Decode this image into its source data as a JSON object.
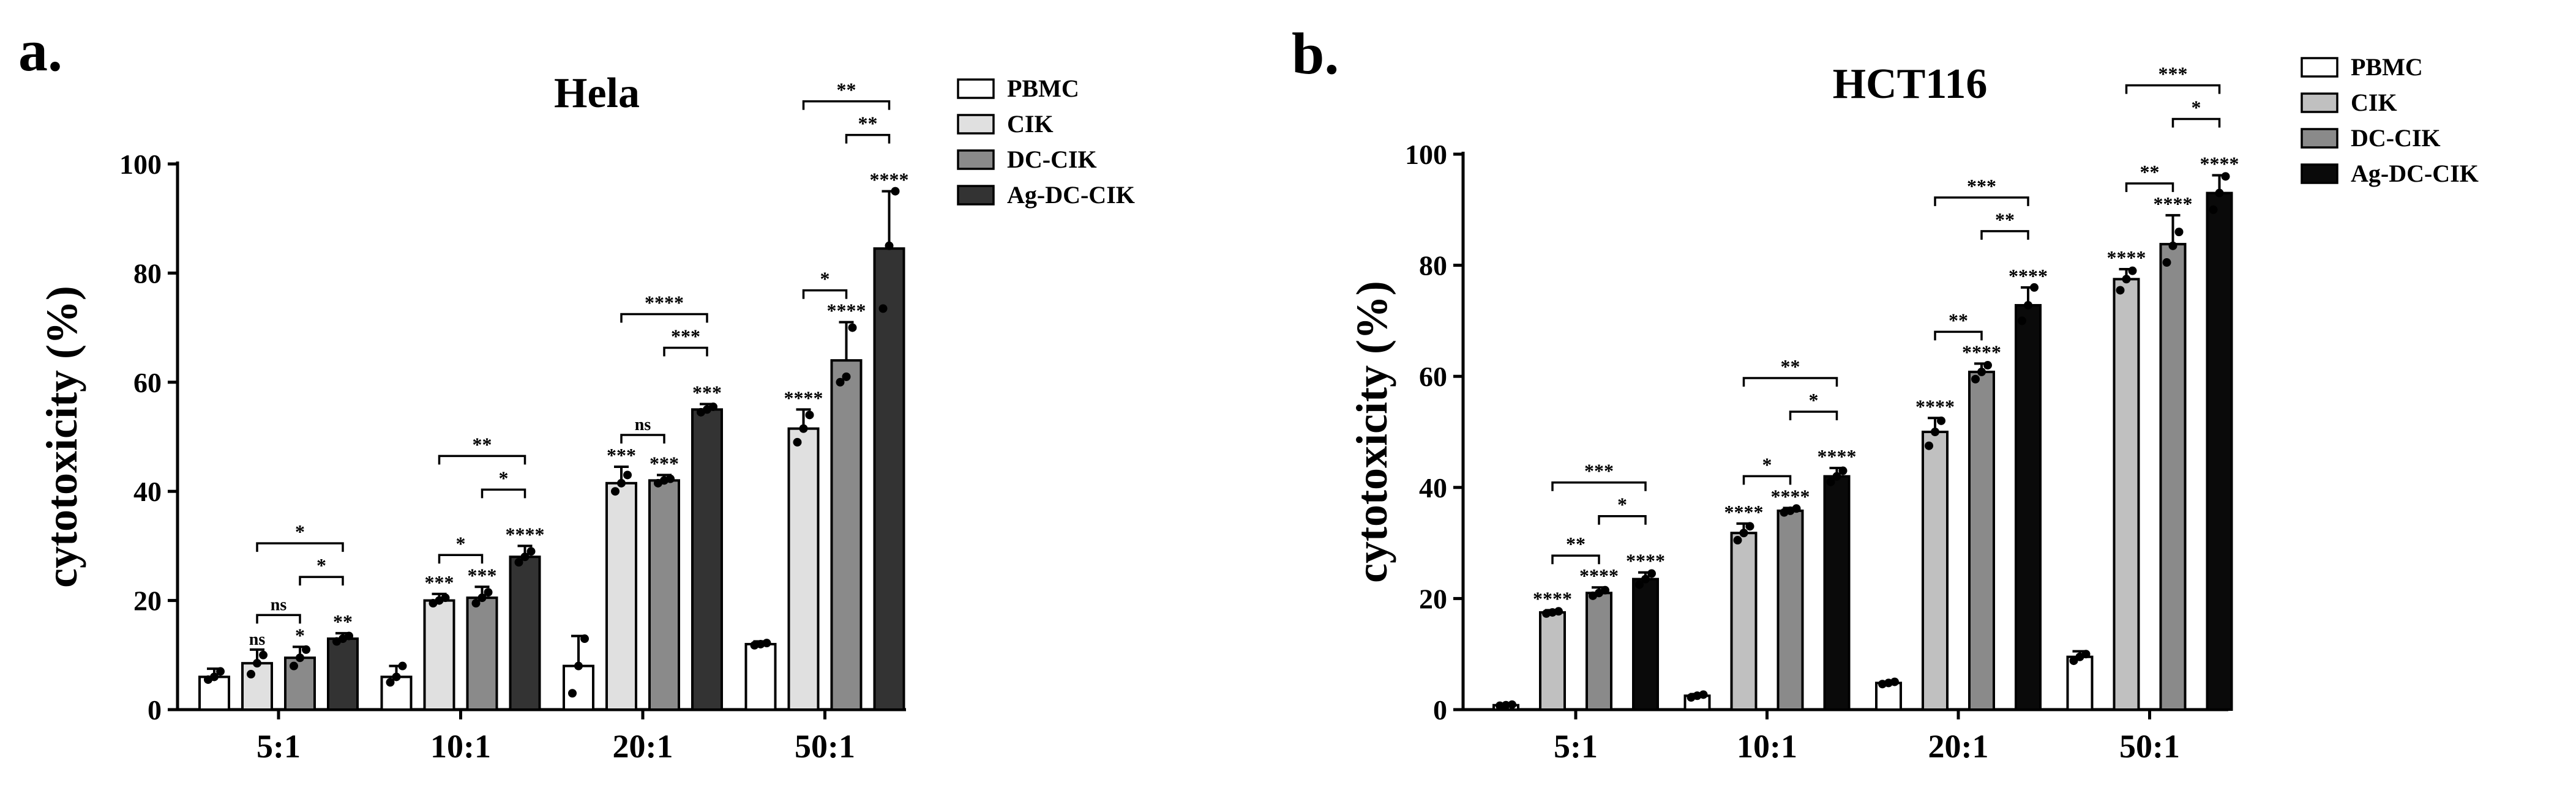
{
  "chart_data": [
    {
      "type": "bar",
      "panel_label": "a.",
      "title": "Hela",
      "xlabel": "",
      "ylabel": "cytotoxicity (%)",
      "ylim": [
        0,
        100
      ],
      "yticks": [
        0,
        20,
        40,
        60,
        80,
        100
      ],
      "categories": [
        "5:1",
        "10:1",
        "20:1",
        "50:1"
      ],
      "legend_position": "top-right",
      "series": [
        {
          "name": "PBMC",
          "color": "#ffffff",
          "values": [
            6,
            6,
            8,
            12
          ],
          "errors": [
            1.5,
            2,
            5.5,
            0.5
          ],
          "points": [
            [
              5.5,
              6,
              7
            ],
            [
              5,
              6,
              8
            ],
            [
              3,
              8,
              13
            ],
            [
              11.8,
              12,
              12.2
            ]
          ],
          "labels": [
            "",
            "",
            "",
            ""
          ]
        },
        {
          "name": "CIK",
          "color": "#e0e0e0",
          "values": [
            8.5,
            20,
            41.5,
            51.5
          ],
          "errors": [
            2.5,
            1.2,
            3,
            3.5
          ],
          "points": [
            [
              6.5,
              8.5,
              10
            ],
            [
              19.5,
              20,
              20.5
            ],
            [
              40,
              41.5,
              43
            ],
            [
              49,
              51.5,
              54
            ]
          ],
          "labels": [
            "ns",
            "***",
            "***",
            "****"
          ]
        },
        {
          "name": "DC-CIK",
          "color": "#8a8a8a",
          "values": [
            9.5,
            20.5,
            42,
            64
          ],
          "errors": [
            2,
            2,
            1,
            7
          ],
          "points": [
            [
              8,
              9.5,
              11
            ],
            [
              19.5,
              20.5,
              21.5
            ],
            [
              41.5,
              42,
              42.3
            ],
            [
              60,
              61,
              70
            ]
          ],
          "labels": [
            "*",
            "***",
            "***",
            "****"
          ]
        },
        {
          "name": "Ag-DC-CIK",
          "color": "#333333",
          "values": [
            13,
            28,
            55,
            84.5
          ],
          "errors": [
            1,
            2,
            1,
            10.5
          ],
          "points": [
            [
              12.5,
              13,
              13.5
            ],
            [
              27,
              28,
              29
            ],
            [
              54.5,
              55,
              55.5
            ],
            [
              73.5,
              85,
              95
            ]
          ],
          "labels": [
            "**",
            "****",
            "***",
            "****"
          ]
        }
      ],
      "comparisons": [
        {
          "category": "5:1",
          "from": "CIK",
          "to": "DC-CIK",
          "label": "ns",
          "level": 1
        },
        {
          "category": "5:1",
          "from": "DC-CIK",
          "to": "Ag-DC-CIK",
          "label": "*",
          "level": 2
        },
        {
          "category": "5:1",
          "from": "CIK",
          "to": "Ag-DC-CIK",
          "label": "*",
          "level": 3
        },
        {
          "category": "10:1",
          "from": "CIK",
          "to": "DC-CIK",
          "label": "*",
          "level": 1
        },
        {
          "category": "10:1",
          "from": "DC-CIK",
          "to": "Ag-DC-CIK",
          "label": "*",
          "level": 2
        },
        {
          "category": "10:1",
          "from": "CIK",
          "to": "Ag-DC-CIK",
          "label": "**",
          "level": 3
        },
        {
          "category": "20:1",
          "from": "CIK",
          "to": "DC-CIK",
          "label": "ns",
          "level": 1
        },
        {
          "category": "20:1",
          "from": "DC-CIK",
          "to": "Ag-DC-CIK",
          "label": "***",
          "level": 2
        },
        {
          "category": "20:1",
          "from": "CIK",
          "to": "Ag-DC-CIK",
          "label": "****",
          "level": 3
        },
        {
          "category": "50:1",
          "from": "CIK",
          "to": "DC-CIK",
          "label": "*",
          "level": 1
        },
        {
          "category": "50:1",
          "from": "DC-CIK",
          "to": "Ag-DC-CIK",
          "label": "**",
          "level": 2
        },
        {
          "category": "50:1",
          "from": "CIK",
          "to": "Ag-DC-CIK",
          "label": "**",
          "level": 3
        }
      ]
    },
    {
      "type": "bar",
      "panel_label": "b.",
      "title": "HCT116",
      "xlabel": "",
      "ylabel": "cytotoxicity (%)",
      "ylim": [
        0,
        100
      ],
      "yticks": [
        0,
        20,
        40,
        60,
        80,
        100
      ],
      "categories": [
        "5:1",
        "10:1",
        "20:1",
        "50:1"
      ],
      "legend_position": "top-right",
      "series": [
        {
          "name": "PBMC",
          "color": "#ffffff",
          "values": [
            0.8,
            2.5,
            4.8,
            9.5
          ],
          "errors": [
            0.2,
            0.3,
            0.2,
            1
          ],
          "points": [
            [
              0.7,
              0.8,
              0.9
            ],
            [
              2.2,
              2.5,
              2.7
            ],
            [
              4.6,
              4.8,
              5
            ],
            [
              8.8,
              9.5,
              10
            ]
          ],
          "labels": [
            "",
            "",
            "",
            ""
          ]
        },
        {
          "name": "CIK",
          "color": "#c0c0c0",
          "values": [
            17.5,
            31.8,
            50,
            77.5
          ],
          "errors": [
            0.4,
            1.7,
            2.5,
            1.8
          ],
          "points": [
            [
              17.3,
              17.5,
              17.7
            ],
            [
              30.5,
              31.8,
              33
            ],
            [
              47.5,
              50,
              52
            ],
            [
              75.5,
              77.5,
              79
            ]
          ],
          "labels": [
            "****",
            "****",
            "****",
            "****"
          ]
        },
        {
          "name": "DC-CIK",
          "color": "#8a8a8a",
          "values": [
            21,
            35.8,
            60.8,
            83.8
          ],
          "errors": [
            1,
            0.5,
            1.5,
            5.2
          ],
          "points": [
            [
              20.5,
              21,
              21.5
            ],
            [
              35.5,
              35.8,
              36.2
            ],
            [
              59.5,
              60.8,
              62
            ],
            [
              80.5,
              83.5,
              86
            ]
          ],
          "labels": [
            "****",
            "****",
            "****",
            "****"
          ]
        },
        {
          "name": "Ag-DC-CIK",
          "color": "#0a0a0a",
          "values": [
            23.5,
            42,
            72.8,
            93
          ],
          "errors": [
            1.2,
            1.5,
            3.2,
            3.2
          ],
          "points": [
            [
              22.5,
              23.5,
              24.5
            ],
            [
              41,
              42,
              43
            ],
            [
              70,
              72.8,
              76
            ],
            [
              90,
              93,
              96
            ]
          ],
          "labels": [
            "****",
            "****",
            "****",
            "****"
          ]
        }
      ],
      "comparisons": [
        {
          "category": "5:1",
          "from": "CIK",
          "to": "DC-CIK",
          "label": "**",
          "level": 1
        },
        {
          "category": "5:1",
          "from": "DC-CIK",
          "to": "Ag-DC-CIK",
          "label": "*",
          "level": 2
        },
        {
          "category": "5:1",
          "from": "CIK",
          "to": "Ag-DC-CIK",
          "label": "***",
          "level": 3
        },
        {
          "category": "10:1",
          "from": "CIK",
          "to": "DC-CIK",
          "label": "*",
          "level": 1
        },
        {
          "category": "10:1",
          "from": "DC-CIK",
          "to": "Ag-DC-CIK",
          "label": "*",
          "level": 2
        },
        {
          "category": "10:1",
          "from": "CIK",
          "to": "Ag-DC-CIK",
          "label": "**",
          "level": 3
        },
        {
          "category": "20:1",
          "from": "CIK",
          "to": "DC-CIK",
          "label": "**",
          "level": 1
        },
        {
          "category": "20:1",
          "from": "DC-CIK",
          "to": "Ag-DC-CIK",
          "label": "**",
          "level": 2
        },
        {
          "category": "20:1",
          "from": "CIK",
          "to": "Ag-DC-CIK",
          "label": "***",
          "level": 3
        },
        {
          "category": "50:1",
          "from": "CIK",
          "to": "DC-CIK",
          "label": "**",
          "level": 1
        },
        {
          "category": "50:1",
          "from": "DC-CIK",
          "to": "Ag-DC-CIK",
          "label": "*",
          "level": 2
        },
        {
          "category": "50:1",
          "from": "CIK",
          "to": "Ag-DC-CIK",
          "label": "***",
          "level": 3
        }
      ]
    }
  ]
}
